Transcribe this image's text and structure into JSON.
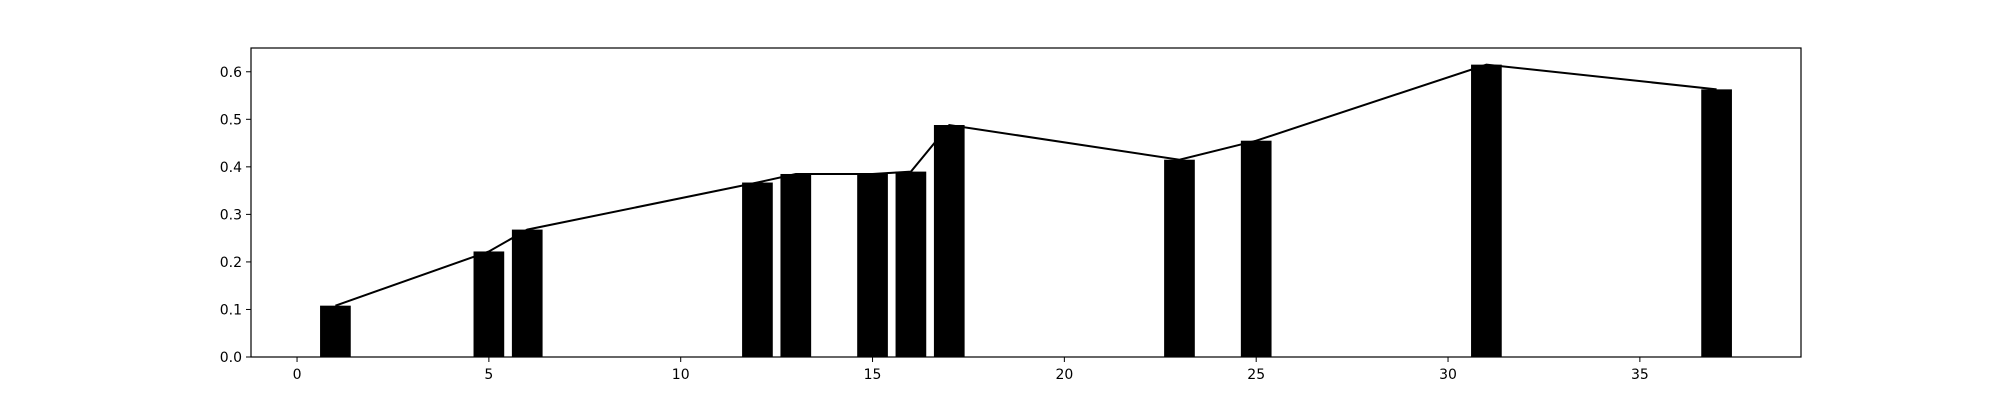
{
  "chart_data": {
    "type": "bar",
    "title": "",
    "xlabel": "",
    "ylabel": "",
    "xlim": [
      -1.2,
      39.2
    ],
    "ylim": [
      0,
      0.65
    ],
    "grid": false,
    "x_ticks": [
      0,
      5,
      10,
      15,
      20,
      25,
      30,
      35
    ],
    "y_ticks": [
      0.0,
      0.1,
      0.2,
      0.3,
      0.4,
      0.5,
      0.6
    ],
    "x_tick_labels": [
      "0",
      "5",
      "10",
      "15",
      "20",
      "25",
      "30",
      "35"
    ],
    "y_tick_labels": [
      "0.0",
      "0.1",
      "0.2",
      "0.3",
      "0.4",
      "0.5",
      "0.6"
    ],
    "bar_width": 0.8,
    "bar_color": "#000000",
    "line_color": "#000000",
    "series": [
      {
        "type": "bar",
        "x": [
          1,
          5,
          6,
          12,
          13,
          15,
          16,
          17,
          23,
          25,
          31,
          37
        ],
        "values": [
          0.108,
          0.222,
          0.268,
          0.367,
          0.385,
          0.385,
          0.39,
          0.488,
          0.415,
          0.455,
          0.615,
          0.563
        ]
      },
      {
        "type": "line",
        "x": [
          1,
          5,
          6,
          12,
          13,
          15,
          16,
          17,
          23,
          25,
          31,
          37
        ],
        "values": [
          0.108,
          0.222,
          0.268,
          0.367,
          0.385,
          0.385,
          0.39,
          0.488,
          0.415,
          0.455,
          0.615,
          0.563
        ]
      }
    ]
  }
}
